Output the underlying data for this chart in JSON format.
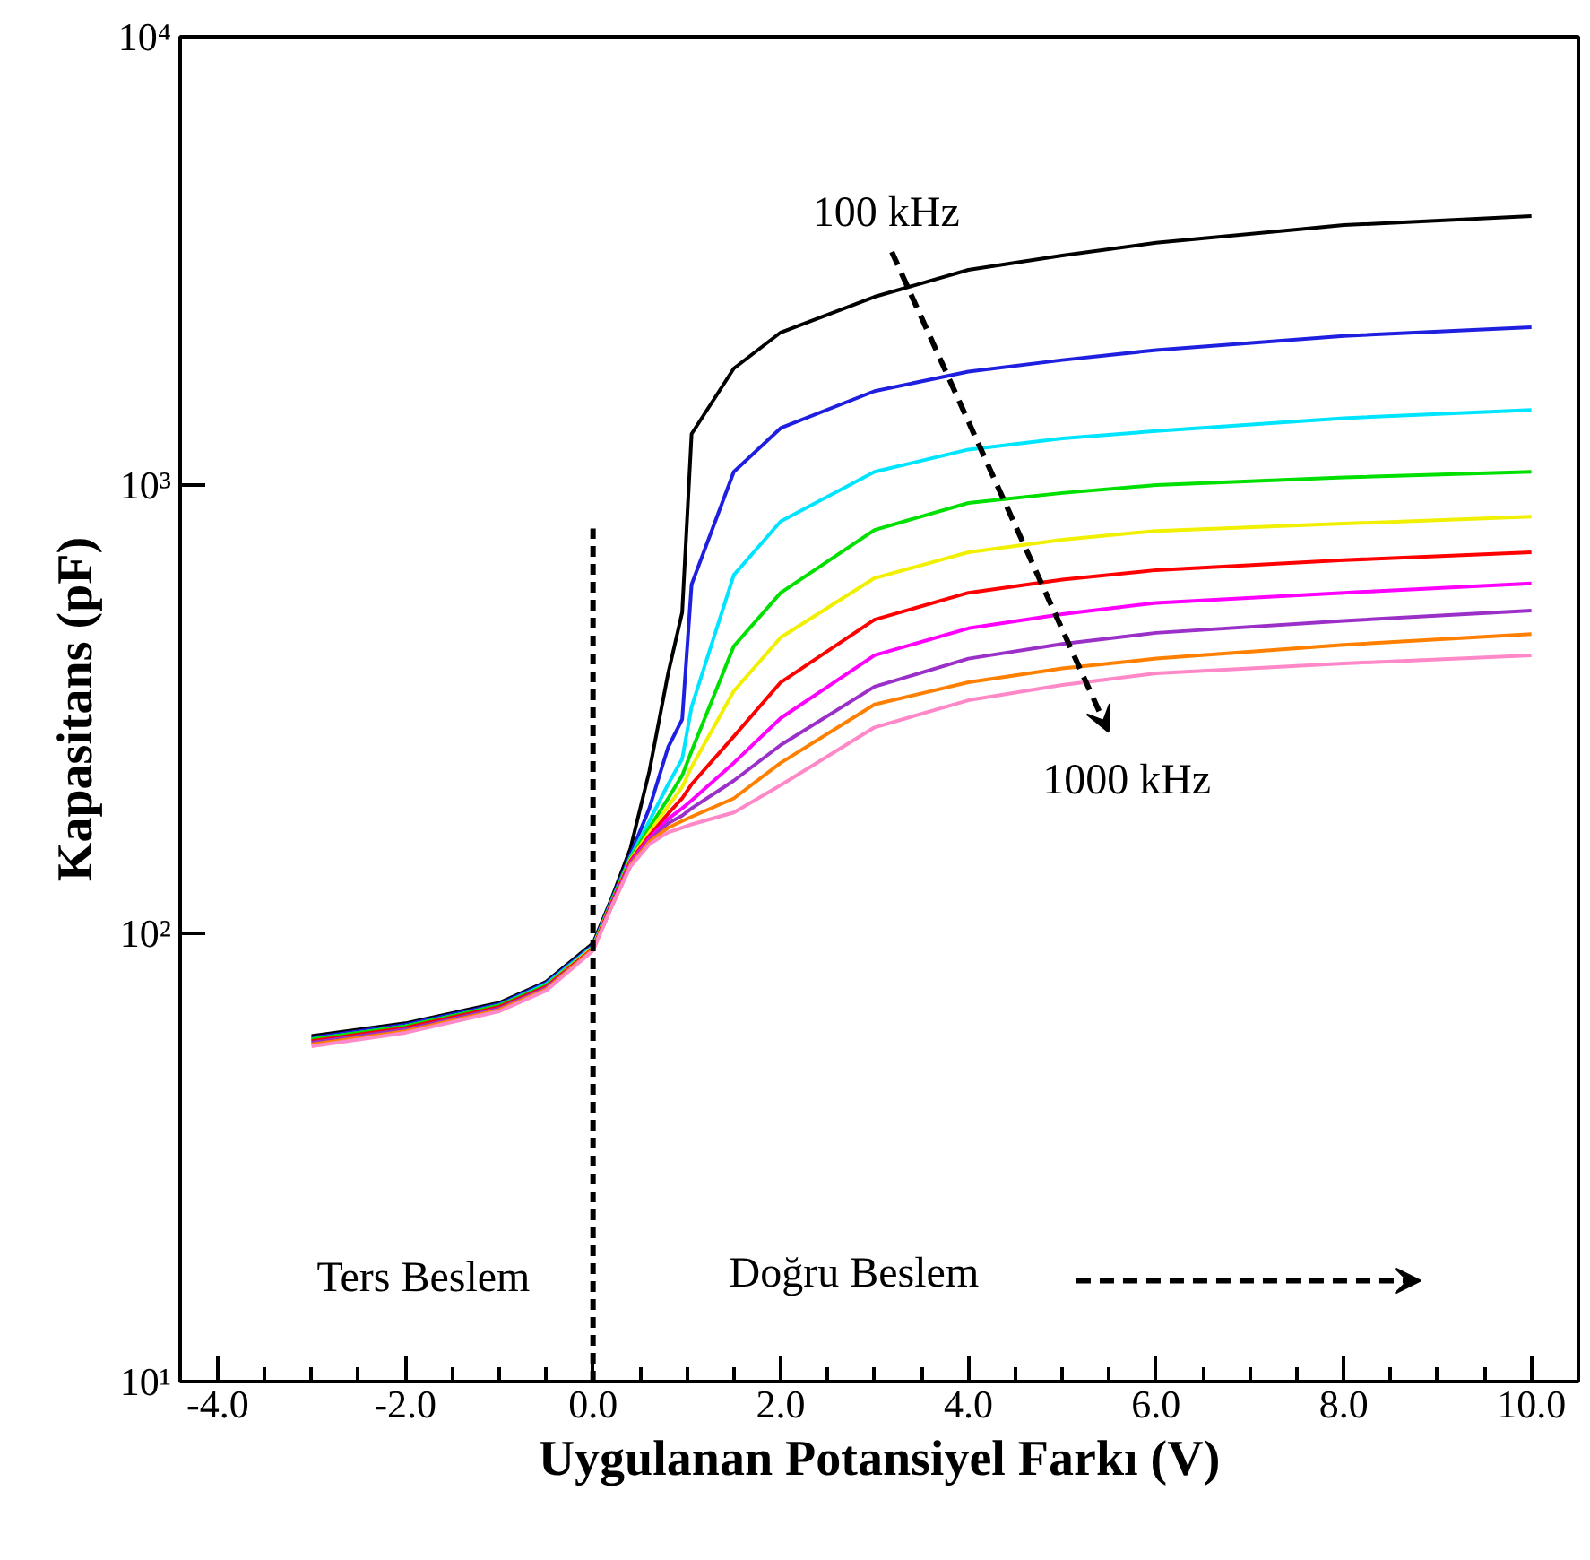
{
  "chart_data": {
    "type": "line",
    "xlabel": "Uygulanan Potansiyel Farkı (V)",
    "ylabel": "Kapasitans (pF)",
    "log": "y",
    "xlim": [
      -4.4,
      10.5
    ],
    "ylim": [
      10,
      10000
    ],
    "xticks": [
      {
        "value": -4,
        "label": "-4.0"
      },
      {
        "value": -2,
        "label": "-2.0"
      },
      {
        "value": 0,
        "label": "0.0"
      },
      {
        "value": 2,
        "label": "2.0"
      },
      {
        "value": 4,
        "label": "4.0"
      },
      {
        "value": 6,
        "label": "6.0"
      },
      {
        "value": 8,
        "label": "8.0"
      },
      {
        "value": 10,
        "label": "10.0"
      }
    ],
    "yticks": [
      {
        "value": 10,
        "label": "10¹"
      },
      {
        "value": 100,
        "label": "10²"
      },
      {
        "value": 1000,
        "label": "10³"
      },
      {
        "value": 10000,
        "label": "10⁴"
      }
    ],
    "x": [
      -3,
      -2,
      -1,
      -0.5,
      0,
      0.2,
      0.4,
      0.6,
      0.8,
      0.95,
      1.05,
      1.5,
      2,
      3,
      4,
      5,
      6,
      8,
      10
    ],
    "series": [
      {
        "color": "#000000",
        "values": [
          59,
          63,
          70,
          78,
          95,
          120,
          155,
          230,
          380,
          520,
          1300,
          1820,
          2190,
          2630,
          3020,
          3250,
          3470,
          3800,
          3980
        ]
      },
      {
        "color": "#1f1fe0",
        "values": [
          58.5,
          62.5,
          69.5,
          77.5,
          94,
          119,
          150,
          190,
          260,
          300,
          600,
          1070,
          1340,
          1620,
          1790,
          1900,
          2000,
          2150,
          2250
        ]
      },
      {
        "color": "#00e5ff",
        "values": [
          58,
          62,
          69,
          77,
          93.5,
          118,
          148,
          178,
          215,
          245,
          320,
          630,
          830,
          1070,
          1200,
          1270,
          1320,
          1410,
          1470
        ]
      },
      {
        "color": "#00e000",
        "values": [
          58,
          62,
          69,
          76.5,
          93,
          118,
          147,
          172,
          200,
          225,
          255,
          437,
          575,
          794,
          912,
          960,
          1000,
          1040,
          1070
        ]
      },
      {
        "color": "#f0f000",
        "values": [
          null,
          null,
          null,
          76,
          93,
          117,
          146,
          168,
          192,
          212,
          235,
          347,
          457,
          620,
          708,
          755,
          790,
          820,
          850
        ]
      },
      {
        "color": "#ff0000",
        "values": [
          57.5,
          61.5,
          68.5,
          76,
          92.5,
          117,
          145,
          165,
          185,
          200,
          215,
          275,
          363,
          501,
          575,
          615,
          646,
          680,
          708
        ]
      },
      {
        "color": "#ff00ff",
        "values": [
          null,
          null,
          null,
          null,
          null,
          116,
          144,
          163,
          180,
          190,
          198,
          240,
          302,
          417,
          479,
          515,
          546,
          575,
          603
        ]
      },
      {
        "color": "#9b30c8",
        "values": [
          57,
          61,
          68,
          75.5,
          92,
          116,
          143,
          161,
          176,
          183,
          190,
          219,
          263,
          355,
          410,
          442,
          468,
          498,
          525
        ]
      },
      {
        "color": "#ff8000",
        "values": [
          56.5,
          60.5,
          67.5,
          75,
          92,
          115,
          142,
          160,
          172,
          178,
          182,
          200,
          240,
          324,
          363,
          390,
          410,
          440,
          465
        ]
      },
      {
        "color": "#ff88c8",
        "values": [
          56,
          60,
          67,
          74.5,
          91.5,
          115,
          141,
          158,
          168,
          172,
          175,
          186,
          214,
          288,
          331,
          358,
          380,
          400,
          417
        ]
      },
      {
        "color": "#000000",
        "x": [
          0,
          0
        ],
        "values": [
          10,
          800
        ],
        "line_style": "dashed"
      }
    ],
    "annotations": [
      "100 kHz",
      "1000 kHz",
      "Ters Beslem",
      "Doğru Beslem"
    ]
  }
}
